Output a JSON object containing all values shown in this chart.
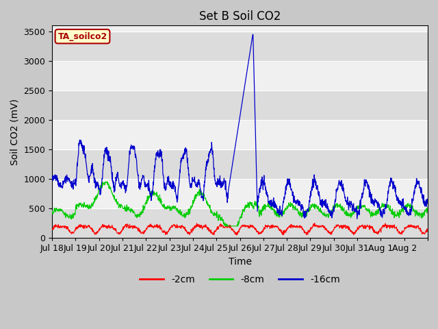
{
  "title": "Set B Soil CO2",
  "ylabel": "Soil CO2 (mV)",
  "xlabel": "Time",
  "legend_label": "TA_soilco2",
  "ylim": [
    0,
    3600
  ],
  "yticks": [
    0,
    500,
    1000,
    1500,
    2000,
    2500,
    3000,
    3500
  ],
  "line_colors": {
    "2cm": "#ff0000",
    "8cm": "#00cc00",
    "16cm": "#0000cc"
  },
  "background_outer": "#c8c8c8",
  "background_plot": "#e8e8e8",
  "band_light": "#f0f0f0",
  "band_dark": "#dcdcdc",
  "legend_box_facecolor": "#ffffcc",
  "legend_box_edgecolor": "#aa0000",
  "title_fontsize": 12,
  "axis_label_fontsize": 10,
  "tick_fontsize": 9,
  "xtick_labels": [
    "Jul 18",
    "Jul 19",
    "Jul 20",
    "Jul 21",
    "Jul 22",
    "Jul 23",
    "Jul 24",
    "Jul 25",
    "Jul 26",
    "Jul 27",
    "Jul 28",
    "Jul 29",
    "Jul 30",
    "Jul 31",
    "Aug 1",
    "Aug 2"
  ],
  "n_days": 16
}
